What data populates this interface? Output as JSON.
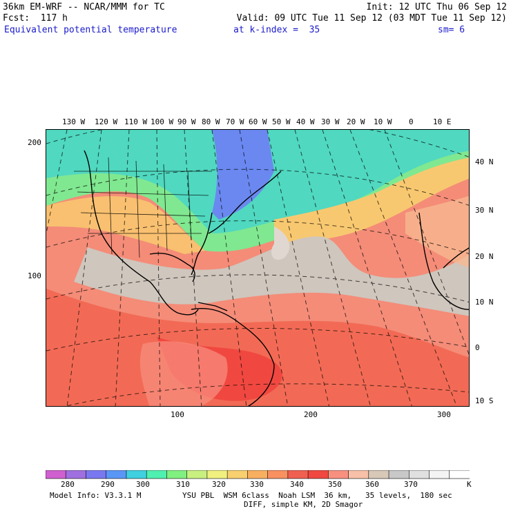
{
  "header": {
    "model": "36km EM-WRF -- NCAR/MMM for TC",
    "forecast": "Fcst:  117 h",
    "init": "Init: 12 UTC Thu 06 Sep 12",
    "valid": "Valid: 09 UTC Tue 11 Sep 12 (03 MDT Tue 11 Sep 12)",
    "field": "Equivalent potential temperature",
    "level": "at k-index =  35",
    "smoothing": "sm= 6"
  },
  "map": {
    "lon_labels": [
      "130 W",
      "120 W",
      "110 W",
      "100 W",
      "90 W",
      "80 W",
      "70 W",
      "60 W",
      "50 W",
      "40 W",
      "30 W",
      "20 W",
      "10 W",
      "0",
      "10 E"
    ],
    "lat_labels": [
      "40 N",
      "30 N",
      "20 N",
      "10 N",
      "0",
      "10 S"
    ],
    "grid_y_labels": [
      "200",
      "100"
    ],
    "grid_x_labels": [
      "100",
      "200",
      "300"
    ]
  },
  "legend": {
    "values": [
      "280",
      "290",
      "300",
      "310",
      "320",
      "330",
      "340",
      "350",
      "360",
      "370"
    ],
    "unit": "K",
    "colors": [
      "#d060d0",
      "#a070e0",
      "#7a78f0",
      "#5a96f5",
      "#40d0e0",
      "#50f0b0",
      "#80f080",
      "#c8f080",
      "#f0f080",
      "#f8d070",
      "#f8b060",
      "#f89060",
      "#f06050",
      "#f04840",
      "#f89080",
      "#f8c0a8",
      "#d8c8b8",
      "#c8c8c8",
      "#e0e0e0",
      "#f4f4f4",
      "#ffffff"
    ]
  },
  "footer": {
    "line1": "Model Info: V3.3.1 M         YSU PBL  WSM 6class  Noah LSM  36 km,   35 levels,  180 sec",
    "line2": "DIFF, simple KM, 2D Smagor"
  }
}
